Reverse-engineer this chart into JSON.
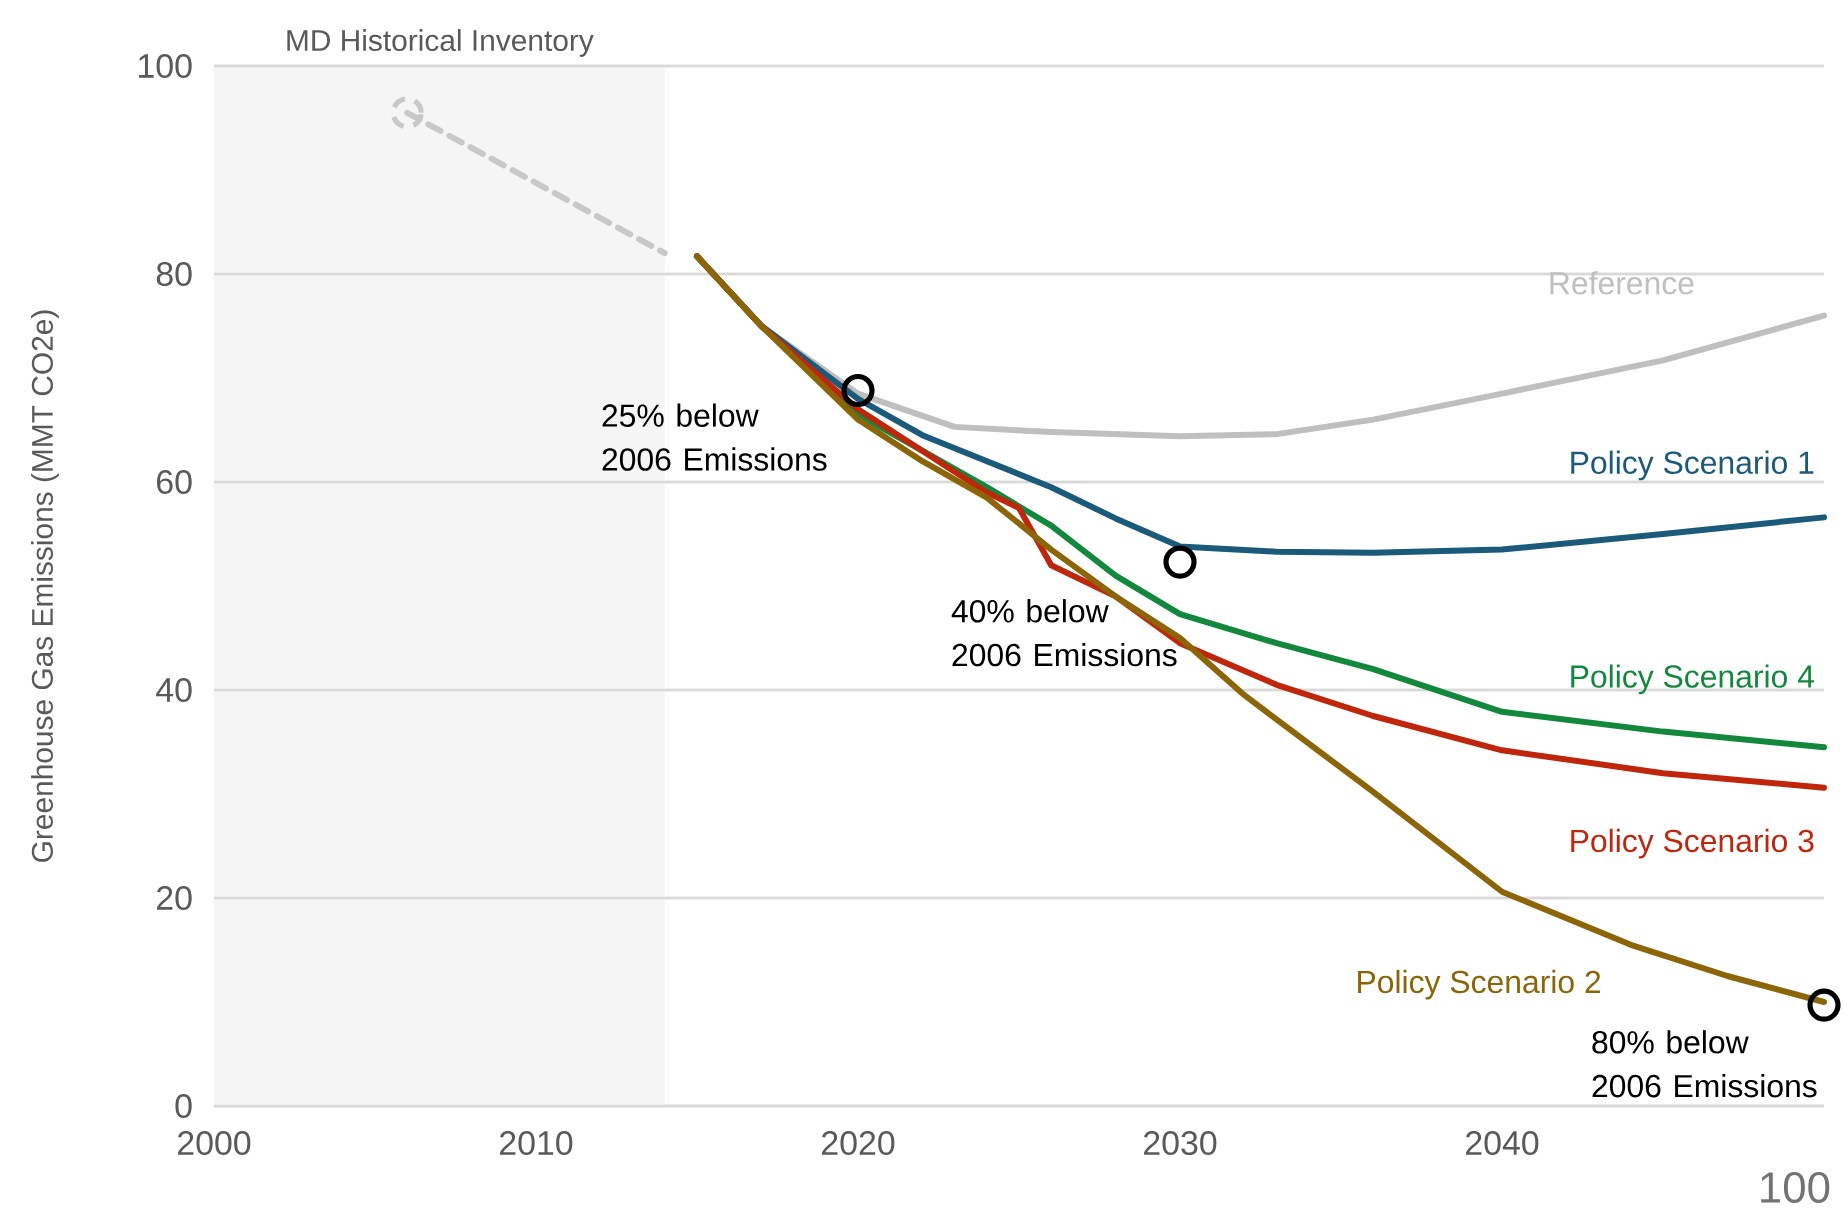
{
  "chart_data": {
    "type": "line",
    "ylabel": "Greenhouse Gas Emissions (MMT CO2e)",
    "xlim": [
      2000,
      2050
    ],
    "xticks": [
      2000,
      2010,
      2020,
      2030,
      2040
    ],
    "ylim": [
      0,
      100
    ],
    "yticks": [
      0,
      20,
      40,
      60,
      80,
      100
    ],
    "grid": "y",
    "bands": [
      {
        "axis": "x",
        "from": 2000,
        "to": 2014,
        "label": "MD Historical Inventory",
        "color": "#f5f5f5"
      }
    ],
    "series": [
      {
        "color": "#c8c8c8",
        "line_style": "dashed",
        "x": [
          2006,
          2014
        ],
        "values": [
          95.5,
          82
        ]
      },
      {
        "name": "Reference",
        "color": "#bfbfbf",
        "x": [
          2015,
          2017,
          2020,
          2023,
          2026,
          2030,
          2033,
          2036,
          2040,
          2045,
          2050
        ],
        "values": [
          81.7,
          75,
          68.5,
          65.3,
          64.8,
          64.4,
          64.6,
          66,
          68.5,
          71.7,
          76
        ]
      },
      {
        "name": "Policy Scenario 1",
        "color": "#1b5a7a",
        "x": [
          2015,
          2017,
          2020,
          2022,
          2024,
          2026,
          2028,
          2030,
          2033,
          2036,
          2040,
          2045,
          2050
        ],
        "values": [
          81.7,
          75,
          68,
          64.5,
          62,
          59.5,
          56.5,
          53.8,
          53.3,
          53.2,
          53.5,
          55,
          56.6
        ]
      },
      {
        "name": "Policy Scenario 4",
        "color": "#12883c",
        "x": [
          2015,
          2017,
          2020,
          2022,
          2024,
          2026,
          2028,
          2030,
          2033,
          2036,
          2040,
          2045,
          2050
        ],
        "values": [
          81.7,
          75,
          66.5,
          63,
          59.5,
          55.8,
          51,
          47.3,
          44.5,
          42,
          37.9,
          36,
          34.5
        ]
      },
      {
        "name": "Policy Scenario 3",
        "color": "#c0260b",
        "x": [
          2015,
          2017,
          2020,
          2022,
          2024,
          2025,
          2026,
          2028,
          2030,
          2033,
          2036,
          2040,
          2045,
          2050
        ],
        "values": [
          81.7,
          75,
          67,
          63,
          59,
          57.5,
          52,
          49,
          44.5,
          40.5,
          37.5,
          34.2,
          32,
          30.6
        ]
      },
      {
        "name": "Policy Scenario 2",
        "color": "#8b6508",
        "x": [
          2015,
          2017,
          2020,
          2022,
          2024,
          2026,
          2028,
          2030,
          2032,
          2036,
          2040,
          2044,
          2047,
          2050
        ],
        "values": [
          81.7,
          75,
          66,
          62,
          58.5,
          53.5,
          49,
          45,
          39.5,
          30.2,
          20.6,
          15.5,
          12.5,
          10
        ]
      },
      {
        "type": "scatter",
        "marker": "circle",
        "color": "#000000",
        "x": [
          2020,
          2030,
          2050
        ],
        "values": [
          68.8,
          52.3,
          9.7
        ]
      },
      {
        "type": "scatter",
        "marker": "circle",
        "line_style": "dashed",
        "color": "#c8c8c8",
        "x": [
          2006
        ],
        "values": [
          95.5
        ]
      }
    ],
    "annotations": [
      {
        "text": "25% below 2006 Emissions",
        "x": 2020,
        "y": 68.8
      },
      {
        "text": "40% below 2006 Emissions",
        "x": 2030,
        "y": 52.3
      },
      {
        "text": "80% below 2006 Emissions",
        "x": 2050,
        "y": 9.7
      },
      "100"
    ]
  }
}
